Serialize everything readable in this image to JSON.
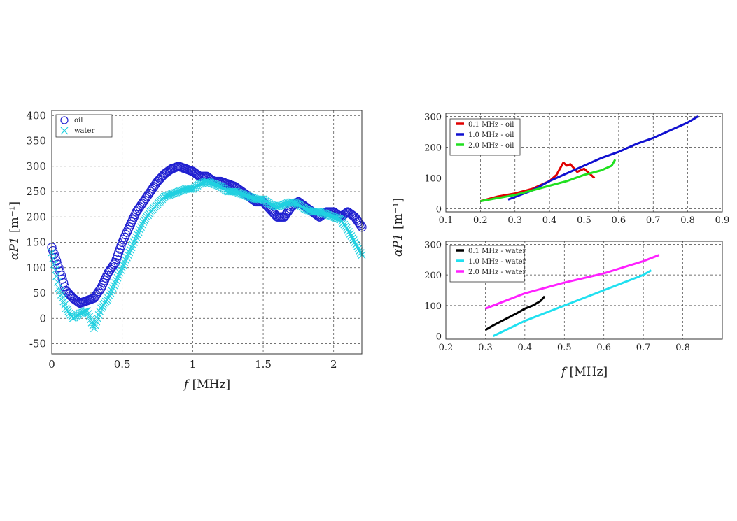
{
  "chart_data": [
    {
      "id": "left",
      "type": "scatter",
      "xlabel_var": "f",
      "xlabel_unit": "[MHz]",
      "ylabel_var": "αP1",
      "ylabel_unit": "[m⁻¹]",
      "xlim": [
        0,
        2.2
      ],
      "ylim": [
        -70,
        410
      ],
      "xticks": [
        0,
        0.5,
        1,
        1.5,
        2
      ],
      "xtick_labels": [
        "0",
        "0.5",
        "1",
        "1.5",
        "2"
      ],
      "yticks": [
        -50,
        0,
        50,
        100,
        150,
        200,
        250,
        300,
        350,
        400
      ],
      "ytick_labels": [
        "-50",
        "0",
        "50",
        "100",
        "150",
        "200",
        "250",
        "300",
        "350",
        "400"
      ],
      "grid": true,
      "legend": "top-left",
      "series": [
        {
          "name": "oil",
          "marker": "circle",
          "color": "#2020d0",
          "x": [
            0.0,
            0.05,
            0.1,
            0.15,
            0.2,
            0.25,
            0.3,
            0.35,
            0.4,
            0.45,
            0.5,
            0.55,
            0.6,
            0.65,
            0.7,
            0.75,
            0.8,
            0.85,
            0.9,
            0.95,
            1.0,
            1.05,
            1.1,
            1.15,
            1.2,
            1.25,
            1.3,
            1.35,
            1.4,
            1.45,
            1.5,
            1.55,
            1.6,
            1.65,
            1.7,
            1.75,
            1.8,
            1.85,
            1.9,
            1.95,
            2.0,
            2.05,
            2.1,
            2.15,
            2.2
          ],
          "y": [
            140,
            100,
            55,
            40,
            30,
            35,
            40,
            60,
            90,
            110,
            150,
            180,
            210,
            230,
            250,
            270,
            285,
            295,
            300,
            295,
            290,
            280,
            280,
            270,
            270,
            265,
            260,
            250,
            240,
            230,
            230,
            215,
            200,
            200,
            220,
            230,
            220,
            210,
            200,
            210,
            210,
            200,
            210,
            200,
            180
          ]
        },
        {
          "name": "water",
          "marker": "x",
          "color": "#20d0e0",
          "x": [
            0.0,
            0.05,
            0.1,
            0.15,
            0.2,
            0.25,
            0.3,
            0.35,
            0.4,
            0.45,
            0.5,
            0.55,
            0.6,
            0.65,
            0.7,
            0.75,
            0.8,
            0.85,
            0.9,
            0.95,
            1.0,
            1.05,
            1.1,
            1.15,
            1.2,
            1.25,
            1.3,
            1.35,
            1.4,
            1.45,
            1.5,
            1.55,
            1.6,
            1.65,
            1.7,
            1.75,
            1.8,
            1.85,
            1.9,
            1.95,
            2.0,
            2.05,
            2.1,
            2.15,
            2.2
          ],
          "y": [
            130,
            60,
            20,
            0,
            10,
            15,
            -20,
            20,
            40,
            70,
            100,
            130,
            160,
            190,
            210,
            225,
            240,
            245,
            250,
            255,
            255,
            265,
            270,
            265,
            260,
            250,
            250,
            245,
            240,
            235,
            235,
            225,
            220,
            225,
            230,
            225,
            215,
            210,
            210,
            205,
            200,
            195,
            175,
            150,
            125
          ]
        }
      ]
    },
    {
      "id": "right-top",
      "type": "line",
      "xlim": [
        0.1,
        0.9
      ],
      "ylim": [
        -10,
        310
      ],
      "xticks": [
        0.1,
        0.2,
        0.3,
        0.4,
        0.5,
        0.6,
        0.7,
        0.8,
        0.9
      ],
      "xtick_labels": [
        "0.1",
        "0.2",
        "0.3",
        "0.4",
        "0.5",
        "0.6",
        "0.7",
        "0.8",
        "0.9"
      ],
      "yticks": [
        0,
        100,
        200,
        300
      ],
      "ytick_labels": [
        "0",
        "100",
        "200",
        "300"
      ],
      "grid": true,
      "legend": "top-left",
      "series": [
        {
          "name": "0.1 MHz - oil",
          "color": "#e00000",
          "x": [
            0.2,
            0.25,
            0.3,
            0.35,
            0.4,
            0.42,
            0.44,
            0.45,
            0.46,
            0.48,
            0.5,
            0.52,
            0.53
          ],
          "y": [
            25,
            40,
            50,
            65,
            90,
            110,
            150,
            140,
            145,
            120,
            130,
            110,
            100
          ]
        },
        {
          "name": "1.0 MHz - oil",
          "color": "#1010d0",
          "x": [
            0.28,
            0.35,
            0.4,
            0.45,
            0.5,
            0.55,
            0.6,
            0.65,
            0.7,
            0.75,
            0.8,
            0.83
          ],
          "y": [
            30,
            60,
            90,
            115,
            140,
            165,
            185,
            210,
            230,
            255,
            280,
            300
          ]
        },
        {
          "name": "2.0 MHz - oil",
          "color": "#20e020",
          "x": [
            0.2,
            0.25,
            0.3,
            0.35,
            0.4,
            0.45,
            0.5,
            0.55,
            0.58,
            0.59
          ],
          "y": [
            25,
            35,
            45,
            60,
            75,
            90,
            110,
            125,
            140,
            160
          ]
        }
      ]
    },
    {
      "id": "right-bottom",
      "type": "line",
      "xlabel_var": "f",
      "xlabel_unit": "[MHz]",
      "xlim": [
        0.2,
        0.9
      ],
      "ylim": [
        -10,
        310
      ],
      "xticks": [
        0.2,
        0.3,
        0.4,
        0.5,
        0.6,
        0.7,
        0.8
      ],
      "xtick_labels": [
        "0.2",
        "0.3",
        "0.4",
        "0.5",
        "0.6",
        "0.7",
        "0.8"
      ],
      "yticks": [
        0,
        100,
        200,
        300
      ],
      "ytick_labels": [
        "0",
        "100",
        "200",
        "300"
      ],
      "grid": true,
      "legend": "top-left",
      "series": [
        {
          "name": "0.1 MHz - water",
          "color": "#000000",
          "x": [
            0.3,
            0.32,
            0.35,
            0.38,
            0.4,
            0.42,
            0.44,
            0.45
          ],
          "y": [
            20,
            35,
            55,
            75,
            90,
            100,
            115,
            130
          ]
        },
        {
          "name": "1.0 MHz - water",
          "color": "#20e0f0",
          "x": [
            0.32,
            0.4,
            0.5,
            0.6,
            0.7,
            0.72
          ],
          "y": [
            0,
            50,
            100,
            150,
            200,
            215
          ]
        },
        {
          "name": "2.0 MHz - water",
          "color": "#ff20ff",
          "x": [
            0.3,
            0.35,
            0.4,
            0.5,
            0.6,
            0.7,
            0.74
          ],
          "y": [
            90,
            115,
            140,
            175,
            205,
            245,
            265
          ]
        }
      ]
    }
  ],
  "shared_ylabel_var": "αP1",
  "shared_ylabel_unit": "[m⁻¹]"
}
